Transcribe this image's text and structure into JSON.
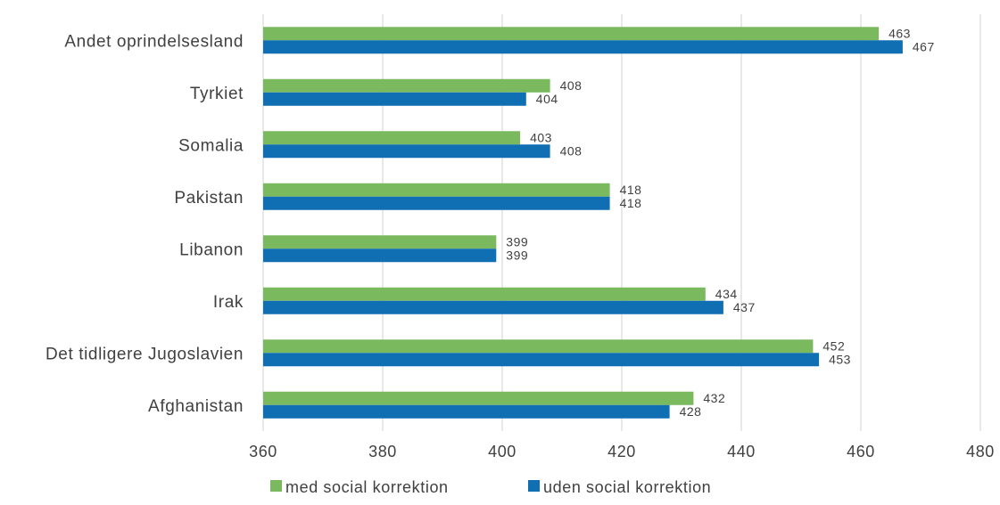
{
  "chart_data": {
    "type": "bar",
    "orientation": "horizontal",
    "categories": [
      "Andet oprindelsesland",
      "Tyrkiet",
      "Somalia",
      "Pakistan",
      "Libanon",
      "Irak",
      "Det tidligere Jugoslavien",
      "Afghanistan"
    ],
    "series": [
      {
        "name": "med social korrektion",
        "color": "#7ab95e",
        "values": [
          463,
          408,
          403,
          418,
          399,
          434,
          452,
          432
        ]
      },
      {
        "name": "uden social korrektion",
        "color": "#0f6fb2",
        "values": [
          467,
          404,
          408,
          418,
          399,
          437,
          453,
          428
        ]
      }
    ],
    "xlim": [
      360,
      480
    ],
    "xticks": [
      360,
      380,
      400,
      420,
      440,
      460,
      480
    ],
    "grid": true,
    "legend": "bottom"
  }
}
